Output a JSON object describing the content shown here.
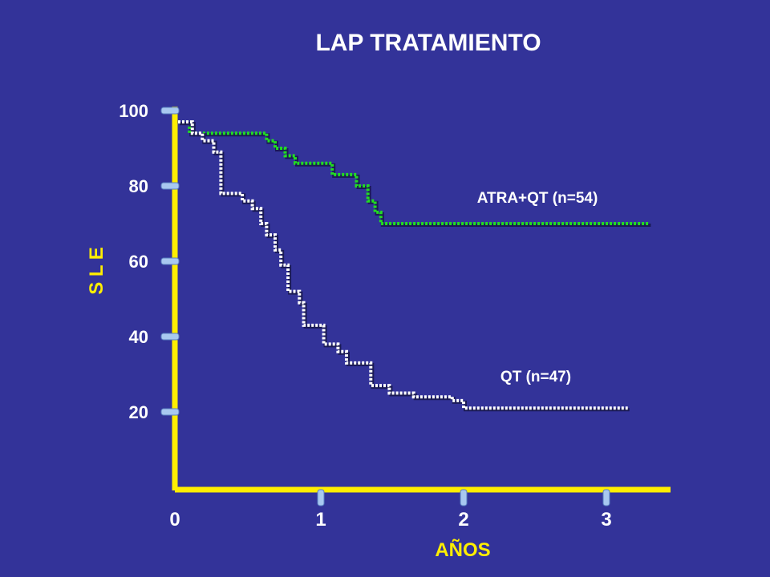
{
  "chart_data": {
    "type": "line",
    "title": "LAP TRATAMIENTO",
    "xlabel": "AÑOS",
    "ylabel": "S L E",
    "xlim": [
      0,
      3.4
    ],
    "ylim": [
      0,
      103
    ],
    "x_ticks": [
      "0",
      "1",
      "2",
      "3"
    ],
    "y_ticks": [
      "20",
      "40",
      "60",
      "80",
      "100"
    ],
    "grid": false,
    "legend": "none",
    "colors": {
      "background": "#333399",
      "axis": "#ffee00",
      "tick_cap": "#a8c8f0",
      "text": "#ffffff",
      "atra_line": "#22dd22",
      "qt_line": "#ffffff"
    },
    "series": [
      {
        "name": "ATRA+QT (n=54)",
        "x": [
          0,
          0.08,
          0.08,
          0.62,
          0.62,
          0.68,
          0.68,
          0.75,
          0.75,
          0.82,
          0.82,
          1.08,
          1.08,
          1.25,
          1.25,
          1.33,
          1.33,
          1.38,
          1.38,
          1.42,
          1.42,
          3.3
        ],
        "y": [
          97,
          97,
          94,
          94,
          92,
          92,
          90,
          90,
          88,
          88,
          86,
          86,
          83,
          83,
          80,
          80,
          76,
          76,
          73,
          73,
          70,
          70
        ]
      },
      {
        "name": "QT (n=47)",
        "x": [
          0,
          0.1,
          0.1,
          0.17,
          0.17,
          0.25,
          0.25,
          0.3,
          0.3,
          0.45,
          0.45,
          0.52,
          0.52,
          0.58,
          0.58,
          0.62,
          0.62,
          0.68,
          0.68,
          0.72,
          0.72,
          0.77,
          0.77,
          0.85,
          0.85,
          0.88,
          0.88,
          1.02,
          1.02,
          1.12,
          1.12,
          1.18,
          1.18,
          1.35,
          1.35,
          1.48,
          1.48,
          1.65,
          1.65,
          1.92,
          1.92,
          2.0,
          2.0,
          3.15
        ],
        "y": [
          97,
          97,
          94,
          94,
          92,
          92,
          89,
          89,
          78,
          78,
          76,
          76,
          74,
          74,
          70,
          70,
          67,
          67,
          63,
          63,
          59,
          59,
          52,
          52,
          49,
          49,
          43,
          43,
          38,
          38,
          36,
          36,
          33,
          33,
          27,
          27,
          25,
          25,
          24,
          24,
          23,
          23,
          21,
          21
        ]
      }
    ]
  }
}
